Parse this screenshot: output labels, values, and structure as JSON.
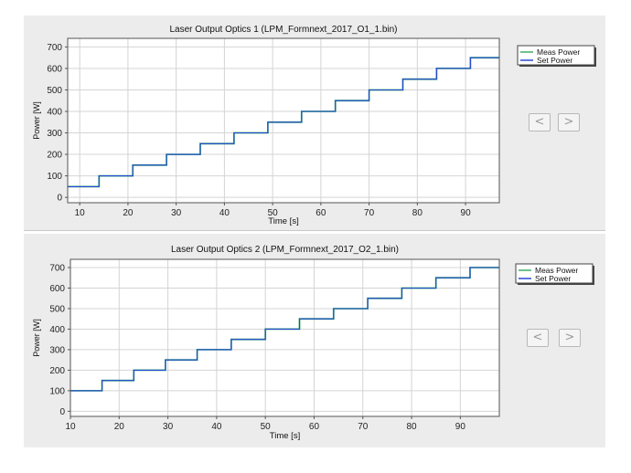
{
  "nav": {
    "prev_label": "<",
    "next_label": ">"
  },
  "colors": {
    "meas": "#3fae64",
    "set": "#2748d6"
  },
  "chart_data": [
    {
      "type": "line",
      "title": "Laser Output Optics 1 (LPM_Formnext_2017_O1_1.bin)",
      "xlabel": "Time [s]",
      "ylabel": "Power [W]",
      "xlim": [
        7.5,
        97
      ],
      "ylim": [
        -25,
        740
      ],
      "xticks": [
        10,
        20,
        30,
        40,
        50,
        60,
        70,
        80,
        90
      ],
      "yticks": [
        0,
        100,
        200,
        300,
        400,
        500,
        600,
        700
      ],
      "grid": true,
      "legend_position": "right",
      "series": [
        {
          "name": "Meas Power",
          "x": [
            7.5,
            14,
            14,
            21,
            21,
            28,
            28,
            35,
            35,
            42,
            42,
            49,
            49,
            56,
            56,
            63,
            63,
            70,
            70,
            77,
            77,
            84,
            84,
            91,
            91,
            97
          ],
          "y": [
            50,
            50,
            100,
            100,
            150,
            150,
            200,
            200,
            250,
            250,
            300,
            300,
            350,
            350,
            400,
            400,
            450,
            450,
            500,
            500,
            550,
            550,
            600,
            600,
            650,
            650
          ]
        },
        {
          "name": "Set Power",
          "x": [
            7.5,
            14,
            14,
            21,
            21,
            28,
            28,
            35,
            35,
            42,
            42,
            49,
            49,
            56,
            56,
            63,
            63,
            70,
            70,
            77,
            77,
            84,
            84,
            91,
            91,
            97
          ],
          "y": [
            50,
            50,
            100,
            100,
            150,
            150,
            200,
            200,
            250,
            250,
            300,
            300,
            350,
            350,
            400,
            400,
            450,
            450,
            500,
            500,
            550,
            550,
            600,
            600,
            650,
            650
          ]
        }
      ]
    },
    {
      "type": "line",
      "title": "Laser Output Optics 2 (LPM_Formnext_2017_O2_1.bin)",
      "xlabel": "Time [s]",
      "ylabel": "Power [W]",
      "xlim": [
        10,
        98
      ],
      "ylim": [
        -25,
        740
      ],
      "xticks": [
        10,
        20,
        30,
        40,
        50,
        60,
        70,
        80,
        90
      ],
      "yticks": [
        0,
        100,
        200,
        300,
        400,
        500,
        600,
        700
      ],
      "grid": true,
      "legend_position": "right",
      "series": [
        {
          "name": "Meas Power",
          "x": [
            10,
            16.5,
            16.5,
            23,
            23,
            29.5,
            29.5,
            36,
            36,
            43,
            43,
            50,
            50,
            57,
            57,
            64,
            64,
            71,
            71,
            78,
            78,
            85,
            85,
            92,
            92,
            98
          ],
          "y": [
            100,
            100,
            150,
            150,
            200,
            200,
            250,
            250,
            300,
            300,
            350,
            350,
            400,
            400,
            450,
            450,
            500,
            500,
            550,
            550,
            600,
            600,
            650,
            650,
            700,
            700
          ]
        },
        {
          "name": "Set Power",
          "x": [
            10,
            16.5,
            16.5,
            23,
            23,
            29.5,
            29.5,
            36,
            36,
            43,
            43,
            50,
            50,
            57,
            57,
            64,
            64,
            71,
            71,
            78,
            78,
            85,
            85,
            92,
            92,
            98
          ],
          "y": [
            100,
            100,
            150,
            150,
            200,
            200,
            250,
            250,
            300,
            300,
            350,
            350,
            400,
            400,
            450,
            450,
            500,
            500,
            550,
            550,
            600,
            600,
            650,
            650,
            700,
            700
          ]
        }
      ]
    }
  ]
}
